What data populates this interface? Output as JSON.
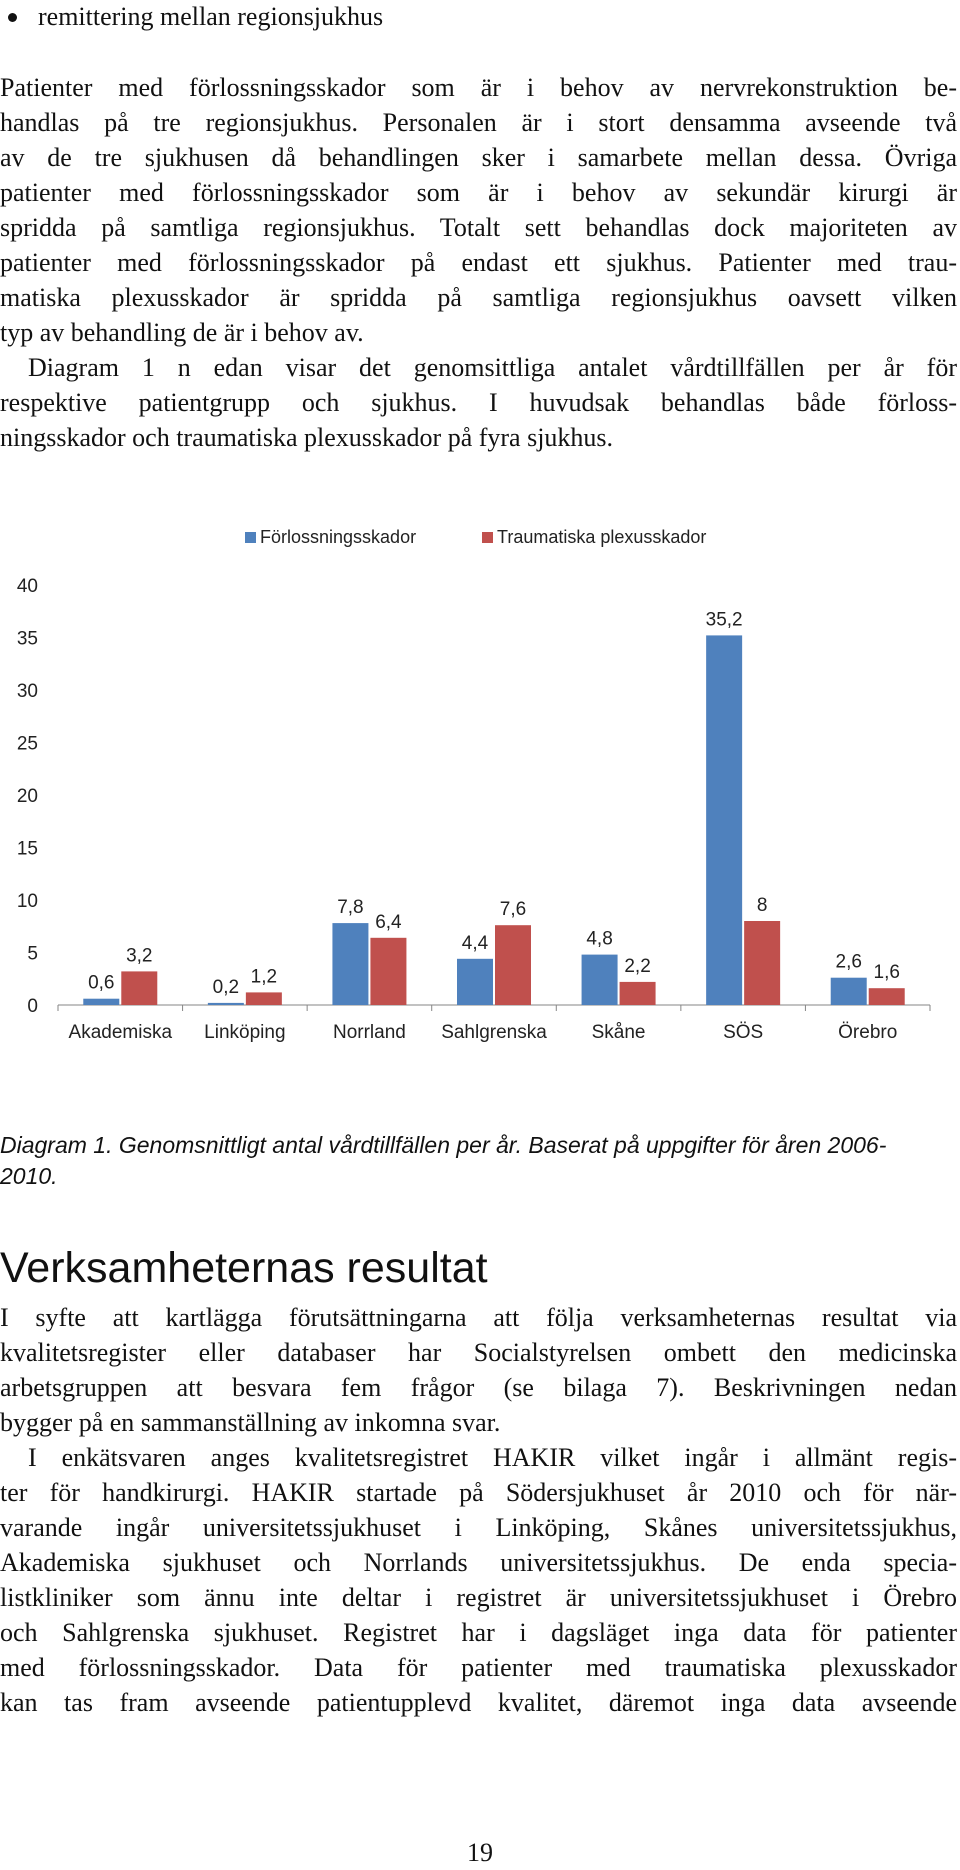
{
  "bullet": {
    "text": "remittering mellan regionsjukhus"
  },
  "paragraph1": {
    "lines": [
      "Patienter med förlossningsskador som är i behov av nervrekonstruktion be-",
      "handlas på tre regionsjukhus. Personalen är i stort densamma avseende två",
      "av de tre sjukhusen då behandlingen sker i samarbete mellan dessa. Övriga",
      "patienter med förlossningsskador som är i behov av sekundär kirurgi är",
      "spridda på samtliga regionsjukhus. Totalt sett behandlas dock majoriteten av",
      "patienter med förlossningsskador på endast ett sjukhus. Patienter med trau-",
      "matiska plexusskador är spridda på samtliga regionsjukhus oavsett vilken",
      "typ av behandling de är i behov av."
    ]
  },
  "paragraph2": {
    "lines": [
      "Diagram 1 n edan visar det genomsittliga antalet vårdtillfällen per år för",
      "respektive patientgrupp och sjukhus. I huvudsak behandlas både förloss-",
      "ningsskador och traumatiska plexusskador på fyra sjukhus."
    ]
  },
  "chart_data": {
    "type": "bar",
    "categories": [
      "Akademiska",
      "Linköping",
      "Norrland",
      "Sahlgrenska",
      "Skåne",
      "SÖS",
      "Örebro"
    ],
    "series": [
      {
        "name": "Förlossningsskador",
        "values": [
          0.6,
          0.2,
          7.8,
          4.4,
          4.8,
          35.2,
          2.6
        ],
        "labels": [
          "0,6",
          "0,2",
          "7,8",
          "4,4",
          "4,8",
          "35,2",
          "2,6"
        ],
        "color": "#4f81bd"
      },
      {
        "name": "Traumatiska plexusskador",
        "values": [
          3.2,
          1.2,
          6.4,
          7.6,
          2.2,
          8,
          1.6
        ],
        "labels": [
          "3,2",
          "1,2",
          "6,4",
          "7,6",
          "2,2",
          "8",
          "1,6"
        ],
        "color": "#c0504d"
      }
    ],
    "yticks": [
      0,
      5,
      10,
      15,
      20,
      25,
      30,
      35,
      40
    ],
    "ylim": [
      0,
      40
    ],
    "grid": false,
    "legend_position": "top",
    "title": "",
    "xlabel": "",
    "ylabel": ""
  },
  "caption": {
    "text": "Diagram 1. Genomsnittligt antal vårdtillfällen per år. Baserat på uppgifter för åren 2006-2010."
  },
  "section": {
    "heading": "Verksamheternas resultat"
  },
  "paragraph3": {
    "lines": [
      "I syfte att kartlägga förutsättningarna att följa verksamheternas resultat via",
      "kvalitetsregister eller databaser har Socialstyrelsen ombett den medicinska",
      "arbetsgruppen att besvara fem frågor (se bilaga 7). Beskrivningen nedan",
      "bygger på en sammanställning av inkomna svar."
    ]
  },
  "paragraph4": {
    "lines": [
      "I enkätsvaren anges kvalitetsregistret HAKIR vilket ingår i allmänt regis-",
      "ter för handkirurgi. HAKIR startade på Södersjukhuset år 2010 och för när-",
      "varande ingår universitetssjukhuset i Linköping, Skånes universitetssjukhus,",
      "Akademiska sjukhuset och Norrlands universitetssjukhus. De enda specia-",
      "listkliniker som ännu inte deltar i registret är universitetssjukhuset i Örebro",
      "och Sahlgrenska sjukhuset. Registret har i dagsläget inga data för patienter",
      "med förlossningsskador. Data för patienter med traumatiska plexusskador",
      "kan tas fram avseende patientupplevd kvalitet, däremot inga data avseende"
    ]
  },
  "page": {
    "number": "19"
  }
}
